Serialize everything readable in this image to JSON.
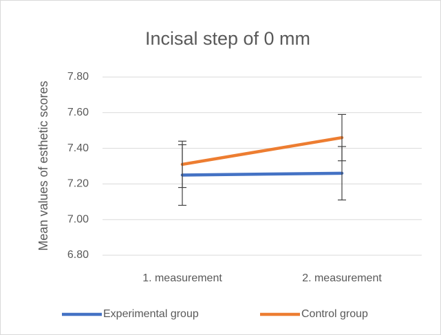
{
  "chart_data": {
    "type": "line",
    "title": "Incisal step of 0 mm",
    "y_label": "Mean values of esthetic scores",
    "categories": [
      "1. measurement",
      "2. measurement"
    ],
    "series": [
      {
        "name": "Experimental group",
        "color": "#4472c4",
        "values": [
          7.25,
          7.26
        ],
        "errors": [
          0.17,
          0.15
        ]
      },
      {
        "name": "Control group",
        "color": "#ed7d31",
        "values": [
          7.31,
          7.46
        ],
        "errors": [
          0.13,
          0.13
        ]
      }
    ],
    "ylim": [
      6.8,
      7.8
    ],
    "yticks": [
      {
        "value": 6.8,
        "label": "6.80"
      },
      {
        "value": 7.0,
        "label": "7.00"
      },
      {
        "value": 7.2,
        "label": "7.20"
      },
      {
        "value": 7.4,
        "label": "7.40"
      },
      {
        "value": 7.6,
        "label": "7.60"
      },
      {
        "value": 7.8,
        "label": "7.80"
      }
    ],
    "grid": true,
    "legend": "bottom"
  }
}
